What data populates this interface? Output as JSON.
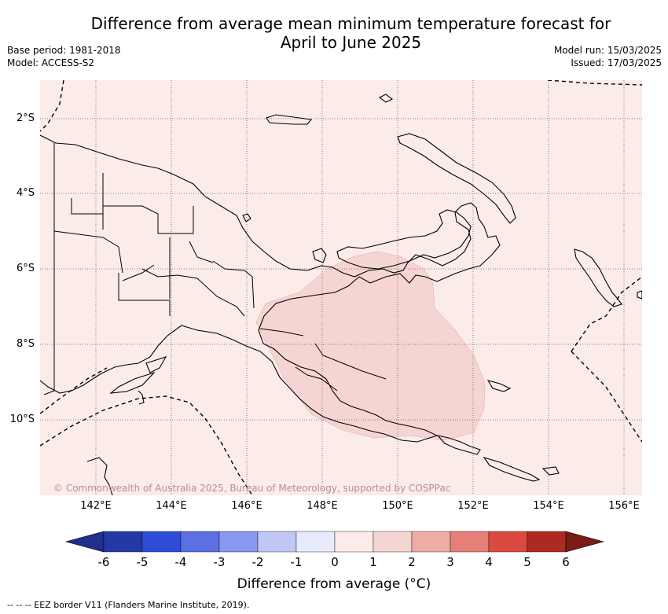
{
  "title_line1": "Difference from average mean minimum temperature forecast for",
  "title_line2": "April to June 2025",
  "base_period": "Base period: 1981-2018",
  "model": "Model: ACCESS-S2",
  "model_run": "Model run: 15/03/2025",
  "issued": "Issued: 17/03/2025",
  "lat_labels": [
    "2°S",
    "4°S",
    "6°S",
    "8°S",
    "10°S"
  ],
  "lon_labels": [
    "142°E",
    "144°E",
    "146°E",
    "148°E",
    "150°E",
    "152°E",
    "154°E",
    "156°E"
  ],
  "copyright": "© Commonwealth of Australia 2025, Bureau of Meteorology, supported by COSPPac",
  "colorbar": {
    "ticks": [
      "-6",
      "-5",
      "-4",
      "-3",
      "-2",
      "-1",
      "0",
      "1",
      "2",
      "3",
      "4",
      "5",
      "6"
    ],
    "colors": [
      "#1f2f8a",
      "#2339a8",
      "#2f4ddb",
      "#5a70e3",
      "#8898ec",
      "#c0c7f5",
      "#e8ebfb",
      "#fbebe9",
      "#f5d5d2",
      "#efaca6",
      "#e67f77",
      "#db4a40",
      "#ad2a22",
      "#7a1c17"
    ],
    "label": "Difference from average (°C)"
  },
  "footnote": "--  --  -- EEZ border V11 (Flanders Marine Institute, 2019).",
  "map_legend": {
    "region_fill_level": "1 to 2 °C above average",
    "background_level": "0 to 1 °C above average"
  }
}
